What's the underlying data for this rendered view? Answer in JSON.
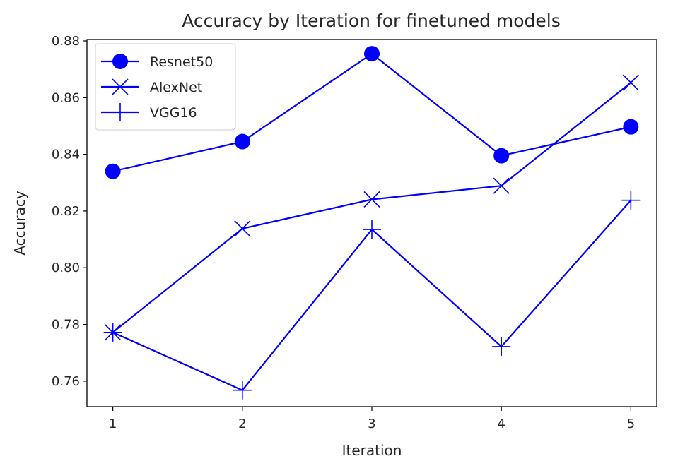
{
  "chart_data": {
    "type": "line",
    "title": "Accuracy by Iteration for finetuned models",
    "xlabel": "Iteration",
    "ylabel": "Accuracy",
    "x": [
      1,
      2,
      3,
      4,
      5
    ],
    "xticks": [
      "1",
      "2",
      "3",
      "4",
      "5"
    ],
    "yticks": [
      "0.76",
      "0.78",
      "0.80",
      "0.82",
      "0.84",
      "0.86",
      "0.88"
    ],
    "xlim": [
      0.8,
      5.2
    ],
    "ylim": [
      0.751,
      0.8805
    ],
    "grid": false,
    "legend_position": "top-left",
    "color": "#0000ff",
    "series": [
      {
        "name": "Resnet50",
        "marker": "circle",
        "values": [
          0.834,
          0.8445,
          0.8755,
          0.8395,
          0.8497
        ]
      },
      {
        "name": "AlexNet",
        "marker": "x",
        "values": [
          0.7772,
          0.8138,
          0.8241,
          0.8289,
          0.8653
        ]
      },
      {
        "name": "VGG16",
        "marker": "plus",
        "values": [
          0.7772,
          0.7568,
          0.8135,
          0.7722,
          0.8238
        ]
      }
    ]
  }
}
